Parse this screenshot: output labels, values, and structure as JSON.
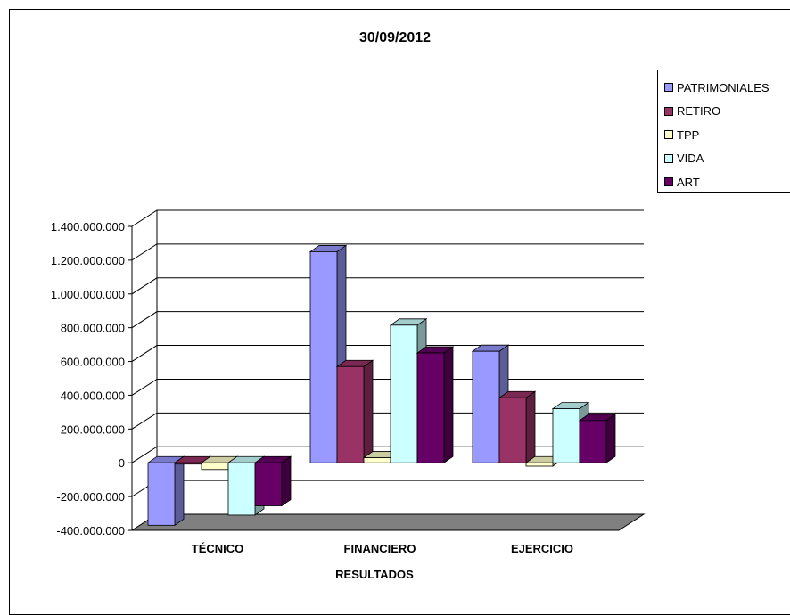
{
  "chart_data": {
    "type": "bar",
    "title": "30/09/2012",
    "xlabel": "RESULTADOS",
    "ylabel": "",
    "categories": [
      "TÉCNICO",
      "FINANCIERO",
      "EJERCICIO"
    ],
    "series": [
      {
        "name": "PATRIMONIALES",
        "color": "#9999ff",
        "values": [
          -370000000,
          1250000000,
          660000000
        ]
      },
      {
        "name": "RETIRO",
        "color": "#993366",
        "values": [
          0,
          570000000,
          385000000
        ]
      },
      {
        "name": "TPP",
        "color": "#ffffcc",
        "values": [
          -40000000,
          30000000,
          -20000000
        ]
      },
      {
        "name": "VIDA",
        "color": "#ccffff",
        "values": [
          -310000000,
          815000000,
          320000000
        ]
      },
      {
        "name": "ART",
        "color": "#660066",
        "values": [
          -255000000,
          650000000,
          250000000
        ]
      }
    ],
    "ylim": [
      -400000000,
      1400000000
    ],
    "yticks": [
      "-400.000.000",
      "-200.000.000",
      "0",
      "200.000.000",
      "400.000.000",
      "600.000.000",
      "800.000.000",
      "1.000.000.000",
      "1.200.000.000",
      "1.400.000.000"
    ],
    "ytick_values": [
      -400000000,
      -200000000,
      0,
      200000000,
      400000000,
      600000000,
      800000000,
      1000000000,
      1200000000,
      1400000000
    ],
    "grid": true,
    "legend_position": "right",
    "floor_color": "#808080"
  }
}
